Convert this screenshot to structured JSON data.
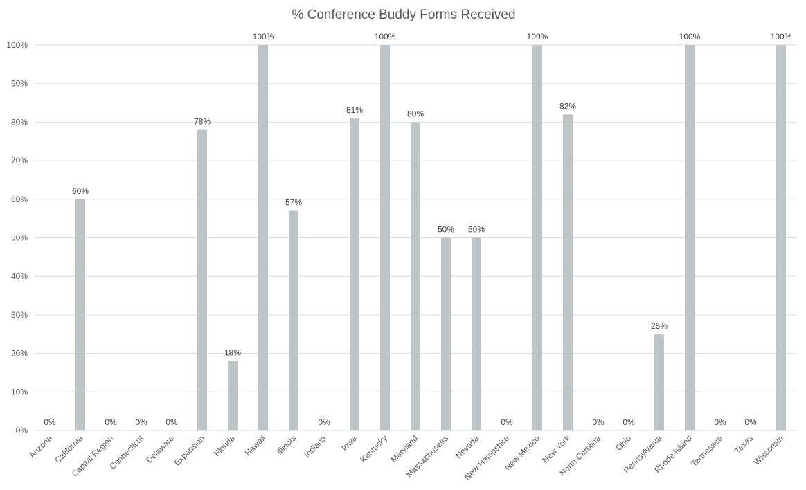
{
  "chart_data": {
    "type": "bar",
    "title": "% Conference Buddy Forms Received",
    "xlabel": "",
    "ylabel": "",
    "ylim": [
      0,
      100
    ],
    "y_ticks": [
      0,
      10,
      20,
      30,
      40,
      50,
      60,
      70,
      80,
      90,
      100
    ],
    "y_tick_labels": [
      "0%",
      "10%",
      "20%",
      "30%",
      "40%",
      "50%",
      "60%",
      "70%",
      "80%",
      "90%",
      "100%"
    ],
    "grid": true,
    "legend": "none",
    "bar_color": "#bec5c8",
    "categories": [
      "Arizona",
      "California",
      "Capital Region",
      "Connecticut",
      "Delaware",
      "Expansion",
      "Florida",
      "Hawaii",
      "Illinois",
      "Indiana",
      "Iowa",
      "Kentucky",
      "Maryland",
      "Massachusetts",
      "Nevada",
      "New Hampshire",
      "New Mexico",
      "New York",
      "North Carolina",
      "Ohio",
      "Pennsylvania",
      "Rhode Island",
      "Tennessee",
      "Texas",
      "Wisconsin"
    ],
    "values": [
      0,
      60,
      0,
      0,
      0,
      78,
      18,
      100,
      57,
      0,
      81,
      100,
      80,
      50,
      50,
      0,
      100,
      82,
      0,
      0,
      25,
      100,
      0,
      0,
      100
    ],
    "data_labels": [
      "0%",
      "60%",
      "0%",
      "0%",
      "0%",
      "78%",
      "18%",
      "100%",
      "57%",
      "0%",
      "81%",
      "100%",
      "80%",
      "50%",
      "50%",
      "0%",
      "100%",
      "82%",
      "0%",
      "0%",
      "25%",
      "100%",
      "0%",
      "0%",
      "100%"
    ]
  }
}
